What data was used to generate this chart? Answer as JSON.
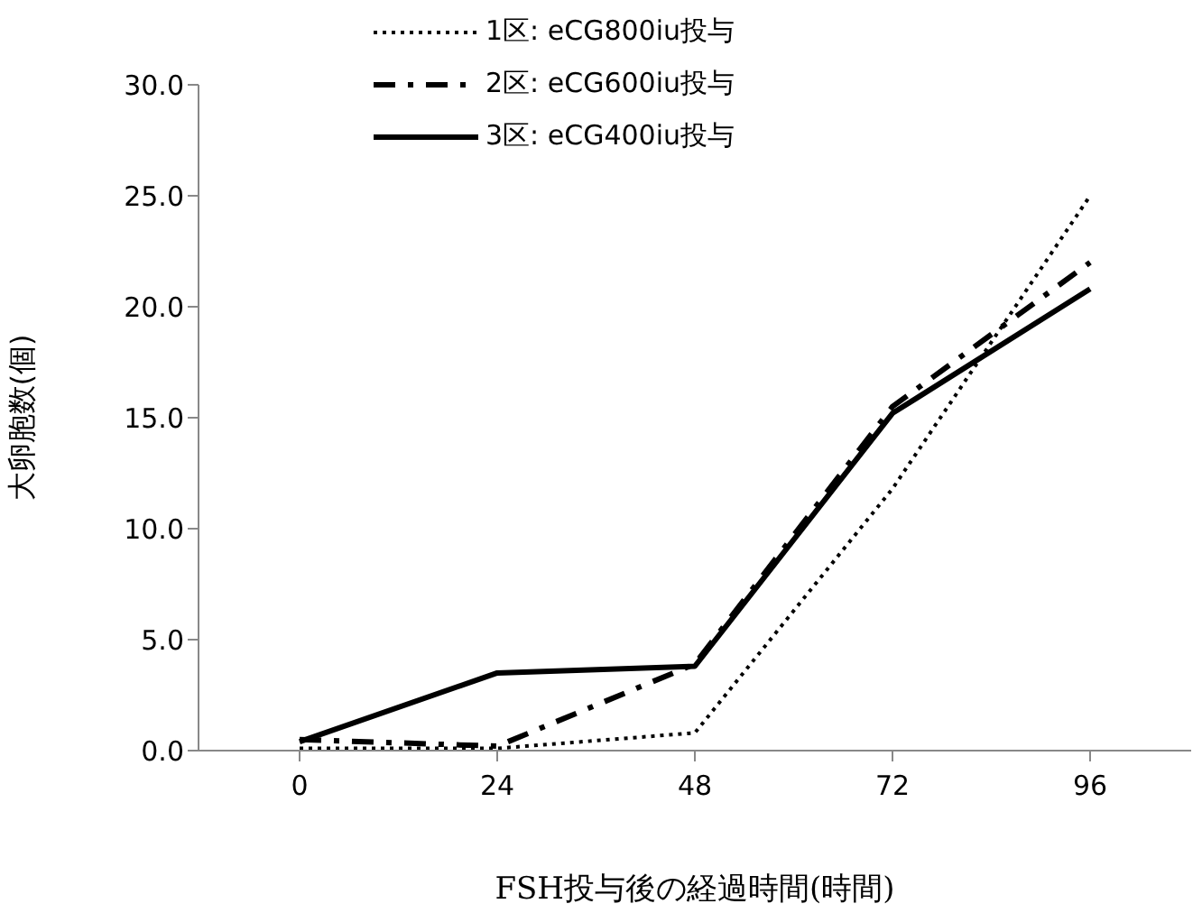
{
  "chart_data": {
    "type": "line",
    "xlabel": "FSH投与後の経過時間(時間)",
    "ylabel": "大卵胞数(個)",
    "categories": [
      "0",
      "24",
      "48",
      "72",
      "96"
    ],
    "series": [
      {
        "name": "1区: eCG800iu投与",
        "color": "#000000",
        "line_style": "dotted",
        "values": [
          0.1,
          0.1,
          0.8,
          11.8,
          25.0
        ]
      },
      {
        "name": "2区: eCG600iu投与",
        "color": "#000000",
        "line_style": "dashed",
        "values": [
          0.5,
          0.2,
          3.9,
          15.5,
          22.0
        ]
      },
      {
        "name": "3区: eCG400iu投与",
        "color": "#000000",
        "line_style": "solid",
        "values": [
          0.4,
          3.5,
          3.8,
          15.2,
          20.8
        ]
      }
    ],
    "ylim": [
      0,
      30
    ],
    "yticks": [
      {
        "value": 0,
        "label": "0.0"
      },
      {
        "value": 5,
        "label": "5.0"
      },
      {
        "value": 10,
        "label": "10.0"
      },
      {
        "value": 15,
        "label": "15.0"
      },
      {
        "value": 20,
        "label": "20.0"
      },
      {
        "value": 25,
        "label": "25.0"
      },
      {
        "value": 30,
        "label": "30.0"
      }
    ],
    "grid": false,
    "legend": "top",
    "marker": "none"
  }
}
